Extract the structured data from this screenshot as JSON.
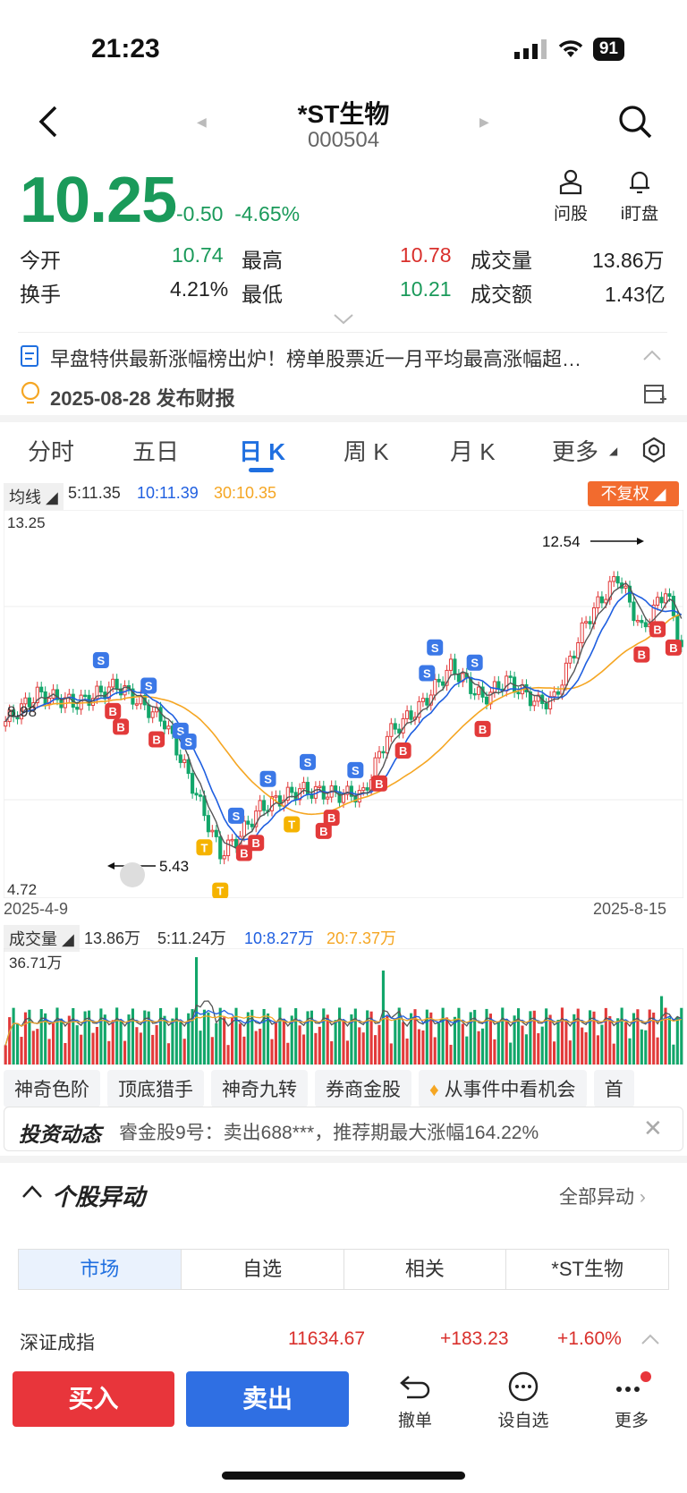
{
  "status": {
    "time": "21:23",
    "battery": "91"
  },
  "header": {
    "title": "*ST生物",
    "code": "000504"
  },
  "quote": {
    "price": "10.25",
    "change": "-0.50",
    "change_pct": "-4.65%",
    "actions": [
      {
        "label": "问股",
        "icon": "person-icon"
      },
      {
        "label": "i盯盘",
        "icon": "bell-icon"
      }
    ],
    "open_label": "今开",
    "open": "10.74",
    "high_label": "最高",
    "high": "10.78",
    "vol_label": "成交量",
    "vol": "13.86万",
    "turnover_label": "换手",
    "turnover": "4.21%",
    "low_label": "最低",
    "low": "10.21",
    "amount_label": "成交额",
    "amount": "1.43亿"
  },
  "notices": {
    "news": "早盘特供最新涨幅榜出炉！榜单股票近一月平均最高涨幅超…",
    "report": "2025-08-28 发布财报"
  },
  "tabs": [
    "分时",
    "五日",
    "日 K",
    "周 K",
    "月 K",
    "更多"
  ],
  "active_tab": "日 K",
  "ma_bar": {
    "label": "均线",
    "ma5": "5:11.35",
    "ma10": "10:11.39",
    "ma30": "30:10.35",
    "fuquan": "不复权"
  },
  "chart_data": {
    "type": "candlestick",
    "price_axis": {
      "top": "13.25",
      "mid": "8.98",
      "bottom": "4.72"
    },
    "x_start": "2025-4-9",
    "x_end": "2025-8-15",
    "max_label": "12.54",
    "min_label": "5.43",
    "colors": {
      "up": "#e23a3a",
      "down": "#12a66a",
      "ma5": "#444444",
      "ma10": "#1f5fe0",
      "ma30": "#f5a623"
    },
    "volume_label": "成交量",
    "volume": "13.86万",
    "vol_ma5": "5:11.24万",
    "vol_ma10": "10:8.27万",
    "vol_ma20": "20:7.37万",
    "volume_axis_top": "36.71万"
  },
  "chips": [
    "神奇色阶",
    "顶底猎手",
    "神奇九转",
    "券商金股",
    "从事件中看机会",
    "首"
  ],
  "dynamics": {
    "title": "投资动态",
    "text": "睿金股9号：卖出688***，推荐期最大涨幅164.22%"
  },
  "anomaly": {
    "title": "个股异动",
    "all": "全部异动"
  },
  "segments": [
    "市场",
    "自选",
    "相关",
    "*ST生物"
  ],
  "index_row": {
    "name": "深证成指",
    "value": "11634.67",
    "change": "+183.23",
    "pct": "+1.60%"
  },
  "bottom": {
    "buy": "买入",
    "sell": "卖出",
    "cancel": "撤单",
    "watch": "设自选",
    "more": "更多"
  }
}
